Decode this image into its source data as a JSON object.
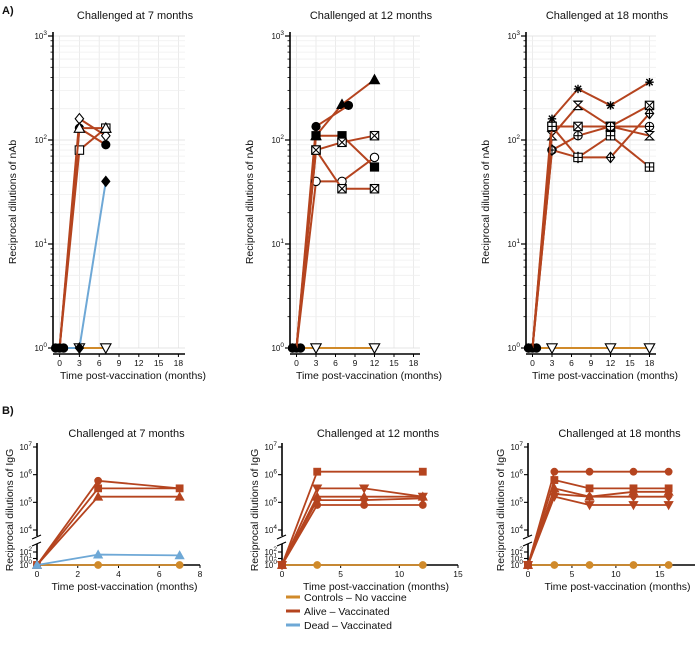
{
  "panel_labels": {
    "a": "A)",
    "b": "B)"
  },
  "legend": [
    {
      "label": "Controls – No vaccine",
      "color": "#d08a2a"
    },
    {
      "label": "Alive – Vaccinated",
      "color": "#b5441f"
    },
    {
      "label": "Dead – Vaccinated",
      "color": "#6ea8d6"
    }
  ],
  "chart_data": [
    {
      "type": "line",
      "panel": "A",
      "title": "Challenged at 7 months",
      "xlabel": "Time post-vaccination (months)",
      "ylabel": "Reciprocal dilutions of nAb",
      "yscale": "log",
      "ylim": [
        1,
        1000
      ],
      "xlim": [
        -1,
        19
      ],
      "xticks": [
        0,
        3,
        6,
        9,
        12,
        15,
        18
      ],
      "yticks": [
        {
          "v": 1,
          "b": "10",
          "e": "0"
        },
        {
          "v": 10,
          "b": "10",
          "e": "1"
        },
        {
          "v": 100,
          "b": "10",
          "e": "2"
        },
        {
          "v": 1000,
          "b": "10",
          "e": "3"
        }
      ],
      "series": [
        {
          "name": "Alive – Vaccinated",
          "group": "alive",
          "marker": "diamond-open",
          "x": [
            0,
            3,
            7
          ],
          "y": [
            1,
            160,
            110
          ]
        },
        {
          "name": "Alive – Vaccinated",
          "group": "alive",
          "marker": "circle",
          "x": [
            0,
            3,
            7
          ],
          "y": [
            1,
            130,
            90
          ]
        },
        {
          "name": "Alive – Vaccinated",
          "group": "alive",
          "marker": "square-open",
          "x": [
            0,
            3,
            7
          ],
          "y": [
            1,
            80,
            130
          ]
        },
        {
          "name": "Alive – Vaccinated",
          "group": "alive",
          "marker": "triangle-open",
          "x": [
            0,
            3,
            7
          ],
          "y": [
            1,
            130,
            130
          ]
        },
        {
          "name": "Dead – Vaccinated",
          "group": "dead",
          "marker": "diamond",
          "x": [
            0,
            3,
            7
          ],
          "y": [
            1,
            1,
            40
          ]
        },
        {
          "name": "Controls – No vaccine",
          "group": "control",
          "marker": "tri-down-open",
          "x": [
            0,
            3,
            7
          ],
          "y": [
            1,
            1,
            1
          ]
        }
      ]
    },
    {
      "type": "line",
      "panel": "A",
      "title": "Challenged at 12 months",
      "xlabel": "Time post-vaccination (months)",
      "ylabel": "Reciprocal dilutions of nAb",
      "yscale": "log",
      "ylim": [
        1,
        1000
      ],
      "xlim": [
        -1,
        19
      ],
      "xticks": [
        0,
        3,
        6,
        9,
        12,
        15,
        18
      ],
      "yticks": [
        {
          "v": 1,
          "b": "10",
          "e": "0"
        },
        {
          "v": 10,
          "b": "10",
          "e": "1"
        },
        {
          "v": 100,
          "b": "10",
          "e": "2"
        },
        {
          "v": 1000,
          "b": "10",
          "e": "3"
        }
      ],
      "series": [
        {
          "name": "Alive – Vaccinated",
          "group": "alive",
          "marker": "triangle",
          "x": [
            0,
            3,
            7,
            12
          ],
          "y": [
            1,
            110,
            220,
            380
          ]
        },
        {
          "name": "Alive – Vaccinated",
          "group": "alive",
          "marker": "circle",
          "x": [
            0,
            3,
            8
          ],
          "y": [
            1,
            135,
            215
          ]
        },
        {
          "name": "Alive – Vaccinated",
          "group": "alive",
          "marker": "square",
          "x": [
            0,
            3,
            7,
            12
          ],
          "y": [
            1,
            110,
            110,
            55
          ]
        },
        {
          "name": "Alive – Vaccinated",
          "group": "alive",
          "marker": "square-x",
          "x": [
            0,
            3,
            7,
            12
          ],
          "y": [
            1,
            80,
            95,
            110
          ]
        },
        {
          "name": "Alive – Vaccinated",
          "group": "alive",
          "marker": "circle-open",
          "x": [
            0,
            3,
            7,
            12
          ],
          "y": [
            1,
            40,
            40,
            68
          ]
        },
        {
          "name": "Alive – Vaccinated",
          "group": "alive",
          "marker": "square-x",
          "x": [
            0,
            3,
            7,
            12
          ],
          "y": [
            1,
            80,
            34,
            34
          ]
        },
        {
          "name": "Controls – No vaccine",
          "group": "control",
          "marker": "tri-down-open",
          "x": [
            0,
            3,
            12
          ],
          "y": [
            1,
            1,
            1
          ]
        }
      ]
    },
    {
      "type": "line",
      "panel": "A",
      "title": "Challenged at 18 months",
      "xlabel": "Time post-vaccination (months)",
      "ylabel": "Reciprocal dilutions of nAb",
      "yscale": "log",
      "ylim": [
        1,
        1000
      ],
      "xlim": [
        -1,
        19
      ],
      "xticks": [
        0,
        3,
        6,
        9,
        12,
        15,
        18
      ],
      "yticks": [
        {
          "v": 1,
          "b": "10",
          "e": "0"
        },
        {
          "v": 10,
          "b": "10",
          "e": "1"
        },
        {
          "v": 100,
          "b": "10",
          "e": "2"
        },
        {
          "v": 1000,
          "b": "10",
          "e": "3"
        }
      ],
      "series": [
        {
          "name": "Alive – Vaccinated",
          "group": "alive",
          "marker": "asterisk",
          "x": [
            0,
            3,
            7,
            12,
            18
          ],
          "y": [
            1,
            160,
            310,
            215,
            360
          ]
        },
        {
          "name": "Alive – Vaccinated",
          "group": "alive",
          "marker": "hourglass",
          "x": [
            0,
            3,
            7,
            12,
            18
          ],
          "y": [
            1,
            110,
            215,
            135,
            110
          ]
        },
        {
          "name": "Alive – Vaccinated",
          "group": "alive",
          "marker": "square-x",
          "x": [
            0,
            3,
            7,
            12,
            18
          ],
          "y": [
            1,
            135,
            135,
            135,
            215
          ]
        },
        {
          "name": "Alive – Vaccinated",
          "group": "alive",
          "marker": "circle-plus",
          "x": [
            0,
            3,
            7,
            12,
            18
          ],
          "y": [
            1,
            80,
            110,
            135,
            135
          ]
        },
        {
          "name": "Alive – Vaccinated",
          "group": "alive",
          "marker": "diamond-plus",
          "x": [
            0,
            3,
            7,
            12,
            18
          ],
          "y": [
            1,
            80,
            68,
            68,
            180
          ]
        },
        {
          "name": "Alive – Vaccinated",
          "group": "alive",
          "marker": "square-plus",
          "x": [
            0,
            3,
            7,
            12,
            18
          ],
          "y": [
            1,
            135,
            68,
            110,
            55
          ]
        },
        {
          "name": "Controls – No vaccine",
          "group": "control",
          "marker": "tri-down-open",
          "x": [
            0,
            3,
            12,
            18
          ],
          "y": [
            1,
            1,
            1,
            1
          ]
        }
      ]
    },
    {
      "type": "line",
      "panel": "B",
      "title": "Challenged at 7 months",
      "xlabel": "Time post-vaccination (months)",
      "ylabel": "Reciprocal dilutions of IgG",
      "yscale": "log-broken",
      "ylim": [
        1,
        10000000
      ],
      "xlim": [
        0,
        8
      ],
      "xticks": [
        0,
        2,
        4,
        6,
        8
      ],
      "yticks": [
        {
          "v": 1,
          "b": "10",
          "e": "0"
        },
        {
          "v": 10,
          "b": "10",
          "e": "1"
        },
        {
          "v": 100,
          "b": "10",
          "e": "2"
        },
        {
          "v": 10000,
          "b": "10",
          "e": "4"
        },
        {
          "v": 100000,
          "b": "10",
          "e": "5"
        },
        {
          "v": 1000000,
          "b": "10",
          "e": "6"
        },
        {
          "v": 10000000,
          "b": "10",
          "e": "7"
        }
      ],
      "series": [
        {
          "name": "Alive – Vaccinated",
          "group": "alive",
          "marker": "circle",
          "x": [
            0,
            3,
            7
          ],
          "y": [
            1,
            600000,
            320000
          ]
        },
        {
          "name": "Alive – Vaccinated",
          "group": "alive",
          "marker": "square",
          "x": [
            0,
            3,
            7
          ],
          "y": [
            1,
            320000,
            320000
          ]
        },
        {
          "name": "Alive – Vaccinated",
          "group": "alive",
          "marker": "triangle",
          "x": [
            0,
            3,
            7
          ],
          "y": [
            1,
            160000,
            160000
          ]
        },
        {
          "name": "Dead – Vaccinated",
          "group": "dead",
          "marker": "triangle",
          "x": [
            0,
            3,
            7
          ],
          "y": [
            1,
            40,
            30
          ]
        },
        {
          "name": "Controls – No vaccine",
          "group": "control",
          "marker": "circle",
          "x": [
            0,
            3,
            7
          ],
          "y": [
            1,
            1,
            1
          ]
        }
      ]
    },
    {
      "type": "line",
      "panel": "B",
      "title": "Challenged at 12 months",
      "xlabel": "Time post-vaccination (months)",
      "ylabel": "Reciprocal dilutions of IgG",
      "yscale": "log-broken",
      "ylim": [
        1,
        10000000
      ],
      "xlim": [
        0,
        15
      ],
      "xticks": [
        0,
        5,
        10,
        15
      ],
      "yticks": [
        {
          "v": 1,
          "b": "10",
          "e": "0"
        },
        {
          "v": 10,
          "b": "10",
          "e": "1"
        },
        {
          "v": 100,
          "b": "10",
          "e": "2"
        },
        {
          "v": 10000,
          "b": "10",
          "e": "4"
        },
        {
          "v": 100000,
          "b": "10",
          "e": "5"
        },
        {
          "v": 1000000,
          "b": "10",
          "e": "6"
        },
        {
          "v": 10000000,
          "b": "10",
          "e": "7"
        }
      ],
      "series": [
        {
          "name": "Alive – Vaccinated",
          "group": "alive",
          "marker": "square",
          "x": [
            0,
            3,
            12
          ],
          "y": [
            1,
            1280000,
            1280000
          ]
        },
        {
          "name": "Alive – Vaccinated",
          "group": "alive",
          "marker": "tri-down",
          "x": [
            0,
            3,
            7,
            12
          ],
          "y": [
            1,
            320000,
            320000,
            160000
          ]
        },
        {
          "name": "Alive – Vaccinated",
          "group": "alive",
          "marker": "triangle",
          "x": [
            0,
            3,
            7,
            12
          ],
          "y": [
            1,
            160000,
            160000,
            160000
          ]
        },
        {
          "name": "Alive – Vaccinated",
          "group": "alive",
          "marker": "diamond",
          "x": [
            0,
            3,
            7,
            12
          ],
          "y": [
            1,
            120000,
            120000,
            140000
          ]
        },
        {
          "name": "Alive – Vaccinated",
          "group": "alive",
          "marker": "circle",
          "x": [
            0,
            3,
            7,
            12
          ],
          "y": [
            1,
            80000,
            80000,
            80000
          ]
        },
        {
          "name": "Controls – No vaccine",
          "group": "control",
          "marker": "circle",
          "x": [
            0,
            3,
            12
          ],
          "y": [
            1,
            1,
            1
          ]
        }
      ]
    },
    {
      "type": "line",
      "panel": "B",
      "title": "Challenged at 18 months",
      "xlabel": "Time post-vaccination (months)",
      "ylabel": "Reciprocal dilutions of IgG",
      "yscale": "log-broken",
      "ylim": [
        1,
        10000000
      ],
      "xlim": [
        0,
        19
      ],
      "xticks": [
        0,
        5,
        10,
        15
      ],
      "yticks": [
        {
          "v": 1,
          "b": "10",
          "e": "0"
        },
        {
          "v": 10,
          "b": "10",
          "e": "1"
        },
        {
          "v": 100,
          "b": "10",
          "e": "2"
        },
        {
          "v": 10000,
          "b": "10",
          "e": "4"
        },
        {
          "v": 100000,
          "b": "10",
          "e": "5"
        },
        {
          "v": 1000000,
          "b": "10",
          "e": "6"
        },
        {
          "v": 10000000,
          "b": "10",
          "e": "7"
        }
      ],
      "series": [
        {
          "name": "Alive – Vaccinated",
          "group": "alive",
          "marker": "circle",
          "x": [
            0,
            3,
            7,
            12,
            16
          ],
          "y": [
            1,
            1280000,
            1280000,
            1280000,
            1280000
          ]
        },
        {
          "name": "Alive – Vaccinated",
          "group": "alive",
          "marker": "square",
          "x": [
            0,
            3,
            7,
            12,
            16
          ],
          "y": [
            1,
            640000,
            320000,
            320000,
            320000
          ]
        },
        {
          "name": "Alive – Vaccinated",
          "group": "alive",
          "marker": "triangle",
          "x": [
            0,
            3,
            7,
            12,
            16
          ],
          "y": [
            1,
            320000,
            160000,
            240000,
            240000
          ]
        },
        {
          "name": "Alive – Vaccinated",
          "group": "alive",
          "marker": "diamond",
          "x": [
            0,
            3,
            7,
            12,
            16
          ],
          "y": [
            1,
            200000,
            160000,
            160000,
            160000
          ]
        },
        {
          "name": "Alive – Vaccinated",
          "group": "alive",
          "marker": "tri-down",
          "x": [
            0,
            3,
            7,
            12,
            16
          ],
          "y": [
            1,
            160000,
            80000,
            80000,
            80000
          ]
        },
        {
          "name": "Controls – No vaccine",
          "group": "control",
          "marker": "circle",
          "x": [
            0,
            3,
            7,
            12,
            16
          ],
          "y": [
            1,
            1,
            1,
            1,
            1
          ]
        }
      ]
    }
  ]
}
